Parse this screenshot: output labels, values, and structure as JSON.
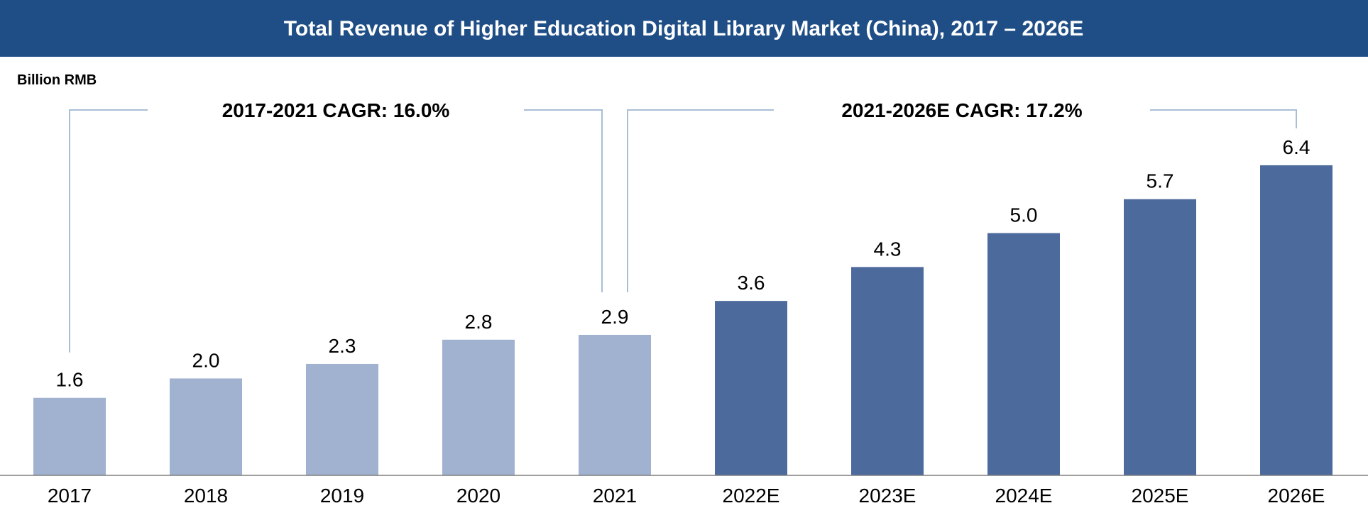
{
  "chart_data": {
    "type": "bar",
    "title": "Total Revenue of Higher Education Digital Library Market (China), 2017 – 2026E",
    "ylabel": "Billion RMB",
    "categories": [
      "2017",
      "2018",
      "2019",
      "2020",
      "2021",
      "2022E",
      "2023E",
      "2024E",
      "2025E",
      "2026E"
    ],
    "values": [
      1.6,
      2.0,
      2.3,
      2.8,
      2.9,
      3.6,
      4.3,
      5.0,
      5.7,
      6.4
    ],
    "value_labels": [
      "1.6",
      "2.0",
      "2.3",
      "2.8",
      "2.9",
      "3.6",
      "4.3",
      "5.0",
      "5.7",
      "6.4"
    ],
    "ylim": [
      0,
      8.2
    ],
    "grid": false,
    "colors": {
      "historical": "#a0b2cf",
      "forecast": "#4d6a9c",
      "title_bg": "#1f4e86",
      "bracket": "#a9bed6"
    },
    "annotations": [
      {
        "text": "2017-2021 CAGR: 16.0%",
        "from": "2017",
        "to": "2021"
      },
      {
        "text": "2021-2026E CAGR: 17.2%",
        "from": "2021",
        "to": "2026E"
      }
    ]
  }
}
